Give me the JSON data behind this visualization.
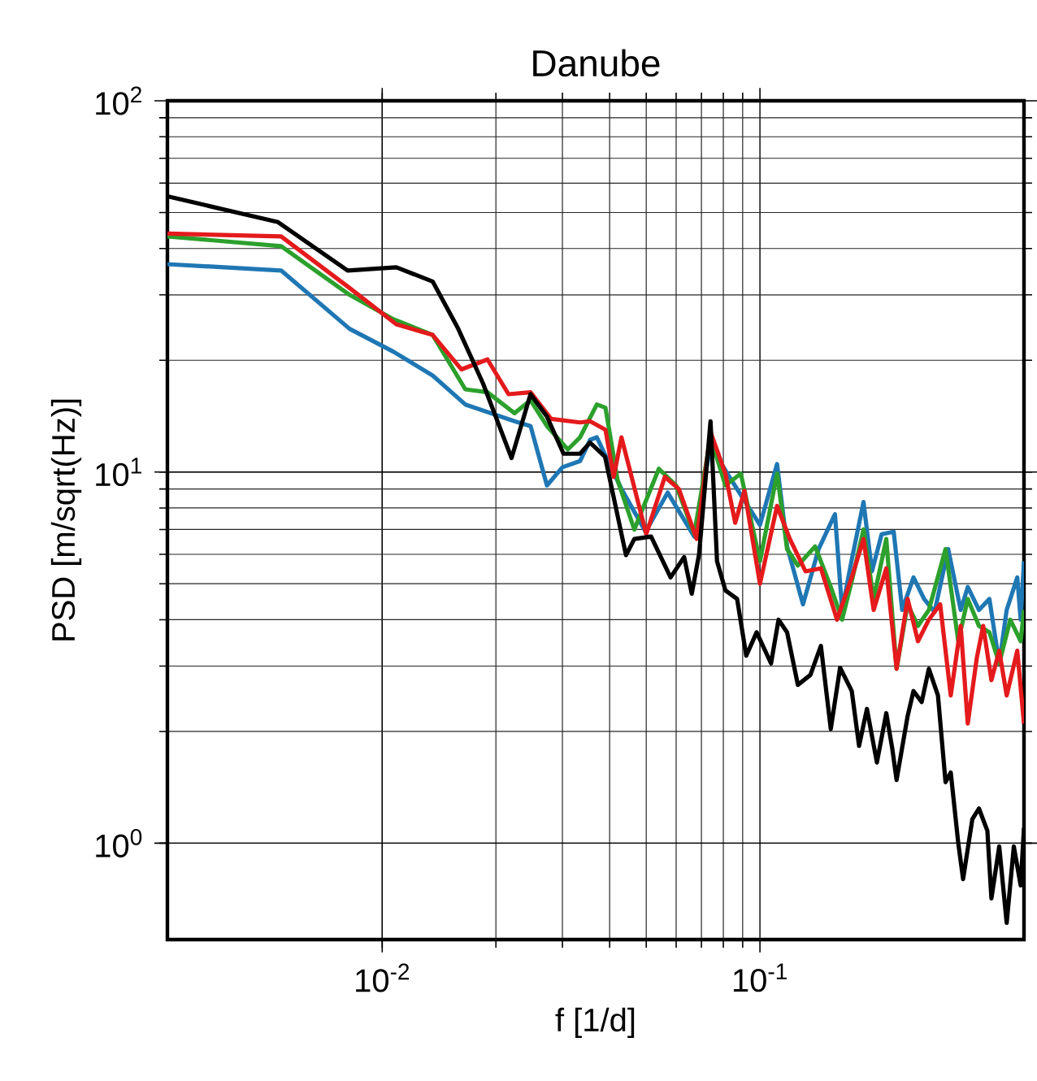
{
  "chart_data": {
    "type": "line",
    "title": "Danube",
    "xlabel": "f [1/d]",
    "ylabel": "PSD [m/sqrt(Hz)]",
    "log": "xy",
    "grid": true,
    "line_style": "solid",
    "xlim": [
      0.0027,
      0.5
    ],
    "ylim": [
      0.55,
      100
    ],
    "xticks": [
      {
        "value": 0.01,
        "label": "10$^{-2}$"
      },
      {
        "value": 0.1,
        "label": "10$^{-1}$"
      }
    ],
    "yticks": [
      {
        "value": 1,
        "label": "10$^{0}$"
      },
      {
        "value": 10,
        "label": "10$^{1}$"
      },
      {
        "value": 100,
        "label": "10$^{2}$"
      }
    ],
    "series": [
      {
        "color": "#1f77b4",
        "x": [
          0.0027,
          0.0054,
          0.0082,
          0.0107,
          0.0136,
          0.0166,
          0.0224,
          0.0247,
          0.0273,
          0.03,
          0.0334,
          0.0355,
          0.037,
          0.043,
          0.0498,
          0.057,
          0.067,
          0.074,
          0.083,
          0.1,
          0.111,
          0.118,
          0.13,
          0.143,
          0.158,
          0.165,
          0.175,
          0.188,
          0.198,
          0.21,
          0.226,
          0.238,
          0.255,
          0.272,
          0.29,
          0.315,
          0.34,
          0.355,
          0.38,
          0.405,
          0.43,
          0.45,
          0.48,
          0.49,
          0.5
        ],
        "values": [
          36.3,
          34.9,
          24.3,
          21.1,
          18.2,
          15.2,
          13.7,
          13.3,
          9.2,
          10.3,
          10.7,
          12.2,
          12.4,
          9.0,
          6.9,
          8.8,
          6.7,
          11.8,
          9.7,
          7.2,
          10.5,
          6.3,
          4.4,
          6.2,
          7.7,
          4.25,
          5.8,
          8.3,
          5.4,
          6.8,
          6.9,
          4.25,
          5.2,
          4.55,
          4.2,
          6.2,
          4.25,
          4.9,
          4.25,
          4.55,
          3.05,
          4.25,
          5.2,
          4.0,
          5.75
        ]
      },
      {
        "color": "#2ca02c",
        "x": [
          0.0027,
          0.0054,
          0.0082,
          0.0107,
          0.0136,
          0.0166,
          0.019,
          0.0224,
          0.0247,
          0.0273,
          0.031,
          0.0334,
          0.037,
          0.039,
          0.042,
          0.0465,
          0.054,
          0.06,
          0.067,
          0.074,
          0.081,
          0.089,
          0.1,
          0.111,
          0.118,
          0.126,
          0.14,
          0.154,
          0.165,
          0.176,
          0.188,
          0.2,
          0.216,
          0.23,
          0.246,
          0.262,
          0.28,
          0.31,
          0.335,
          0.355,
          0.38,
          0.405,
          0.43,
          0.46,
          0.49,
          0.5
        ],
        "values": [
          43.1,
          40.6,
          30.0,
          25.8,
          23.4,
          16.7,
          16.4,
          14.4,
          15.6,
          13.3,
          11.5,
          12.4,
          15.2,
          14.9,
          9.5,
          7.0,
          10.2,
          9.2,
          6.8,
          12.4,
          9.2,
          9.9,
          5.75,
          9.9,
          6.2,
          5.6,
          6.3,
          4.9,
          4.0,
          5.2,
          7.0,
          4.55,
          6.6,
          2.95,
          4.4,
          3.85,
          4.25,
          6.2,
          3.5,
          4.55,
          3.85,
          3.7,
          3.05,
          4.0,
          3.5,
          4.25
        ]
      },
      {
        "color": "#e41a1c",
        "x": [
          0.0027,
          0.0054,
          0.0082,
          0.0109,
          0.0136,
          0.0162,
          0.019,
          0.0216,
          0.0247,
          0.028,
          0.0334,
          0.0355,
          0.039,
          0.041,
          0.043,
          0.05,
          0.056,
          0.061,
          0.068,
          0.074,
          0.081,
          0.086,
          0.091,
          0.1,
          0.111,
          0.12,
          0.132,
          0.145,
          0.16,
          0.175,
          0.188,
          0.2,
          0.216,
          0.23,
          0.246,
          0.262,
          0.28,
          0.3,
          0.32,
          0.34,
          0.355,
          0.375,
          0.39,
          0.41,
          0.43,
          0.45,
          0.48,
          0.5
        ],
        "values": [
          43.9,
          43.1,
          31.3,
          25.0,
          23.4,
          18.9,
          20.1,
          16.2,
          16.4,
          13.9,
          13.6,
          13.7,
          13.0,
          9.7,
          12.4,
          6.8,
          9.7,
          9.0,
          6.6,
          12.8,
          9.9,
          7.3,
          8.9,
          5.0,
          8.1,
          6.6,
          5.4,
          5.5,
          4.0,
          5.2,
          6.6,
          4.25,
          5.5,
          2.95,
          4.55,
          3.5,
          4.0,
          4.4,
          2.5,
          3.85,
          2.1,
          3.15,
          3.85,
          2.75,
          3.3,
          2.5,
          3.3,
          2.1
        ]
      },
      {
        "color": "#000000",
        "x": [
          0.0027,
          0.0053,
          0.0081,
          0.0109,
          0.0136,
          0.0159,
          0.0185,
          0.022,
          0.0247,
          0.0273,
          0.0302,
          0.0334,
          0.0355,
          0.0389,
          0.0442,
          0.0465,
          0.0515,
          0.058,
          0.063,
          0.066,
          0.069,
          0.074,
          0.077,
          0.081,
          0.087,
          0.092,
          0.098,
          0.107,
          0.112,
          0.118,
          0.126,
          0.136,
          0.145,
          0.154,
          0.163,
          0.175,
          0.183,
          0.192,
          0.204,
          0.216,
          0.224,
          0.23,
          0.246,
          0.255,
          0.268,
          0.28,
          0.296,
          0.31,
          0.32,
          0.335,
          0.345,
          0.365,
          0.38,
          0.4,
          0.41,
          0.43,
          0.45,
          0.47,
          0.49,
          0.5
        ],
        "values": [
          55.3,
          47.1,
          34.9,
          35.6,
          32.6,
          24.3,
          17.3,
          10.9,
          16.2,
          14.1,
          11.2,
          11.2,
          12.0,
          11.0,
          5.97,
          6.6,
          6.7,
          5.2,
          5.9,
          4.7,
          6.0,
          13.7,
          5.75,
          4.8,
          4.55,
          3.2,
          3.7,
          3.05,
          4.0,
          3.7,
          2.67,
          2.84,
          3.4,
          2.03,
          2.97,
          2.57,
          1.83,
          2.3,
          1.65,
          2.24,
          1.8,
          1.48,
          2.2,
          2.57,
          2.4,
          2.95,
          2.5,
          1.46,
          1.55,
          1.0,
          0.8,
          1.16,
          1.24,
          1.08,
          0.71,
          0.98,
          0.61,
          0.98,
          0.77,
          1.1
        ]
      }
    ]
  }
}
